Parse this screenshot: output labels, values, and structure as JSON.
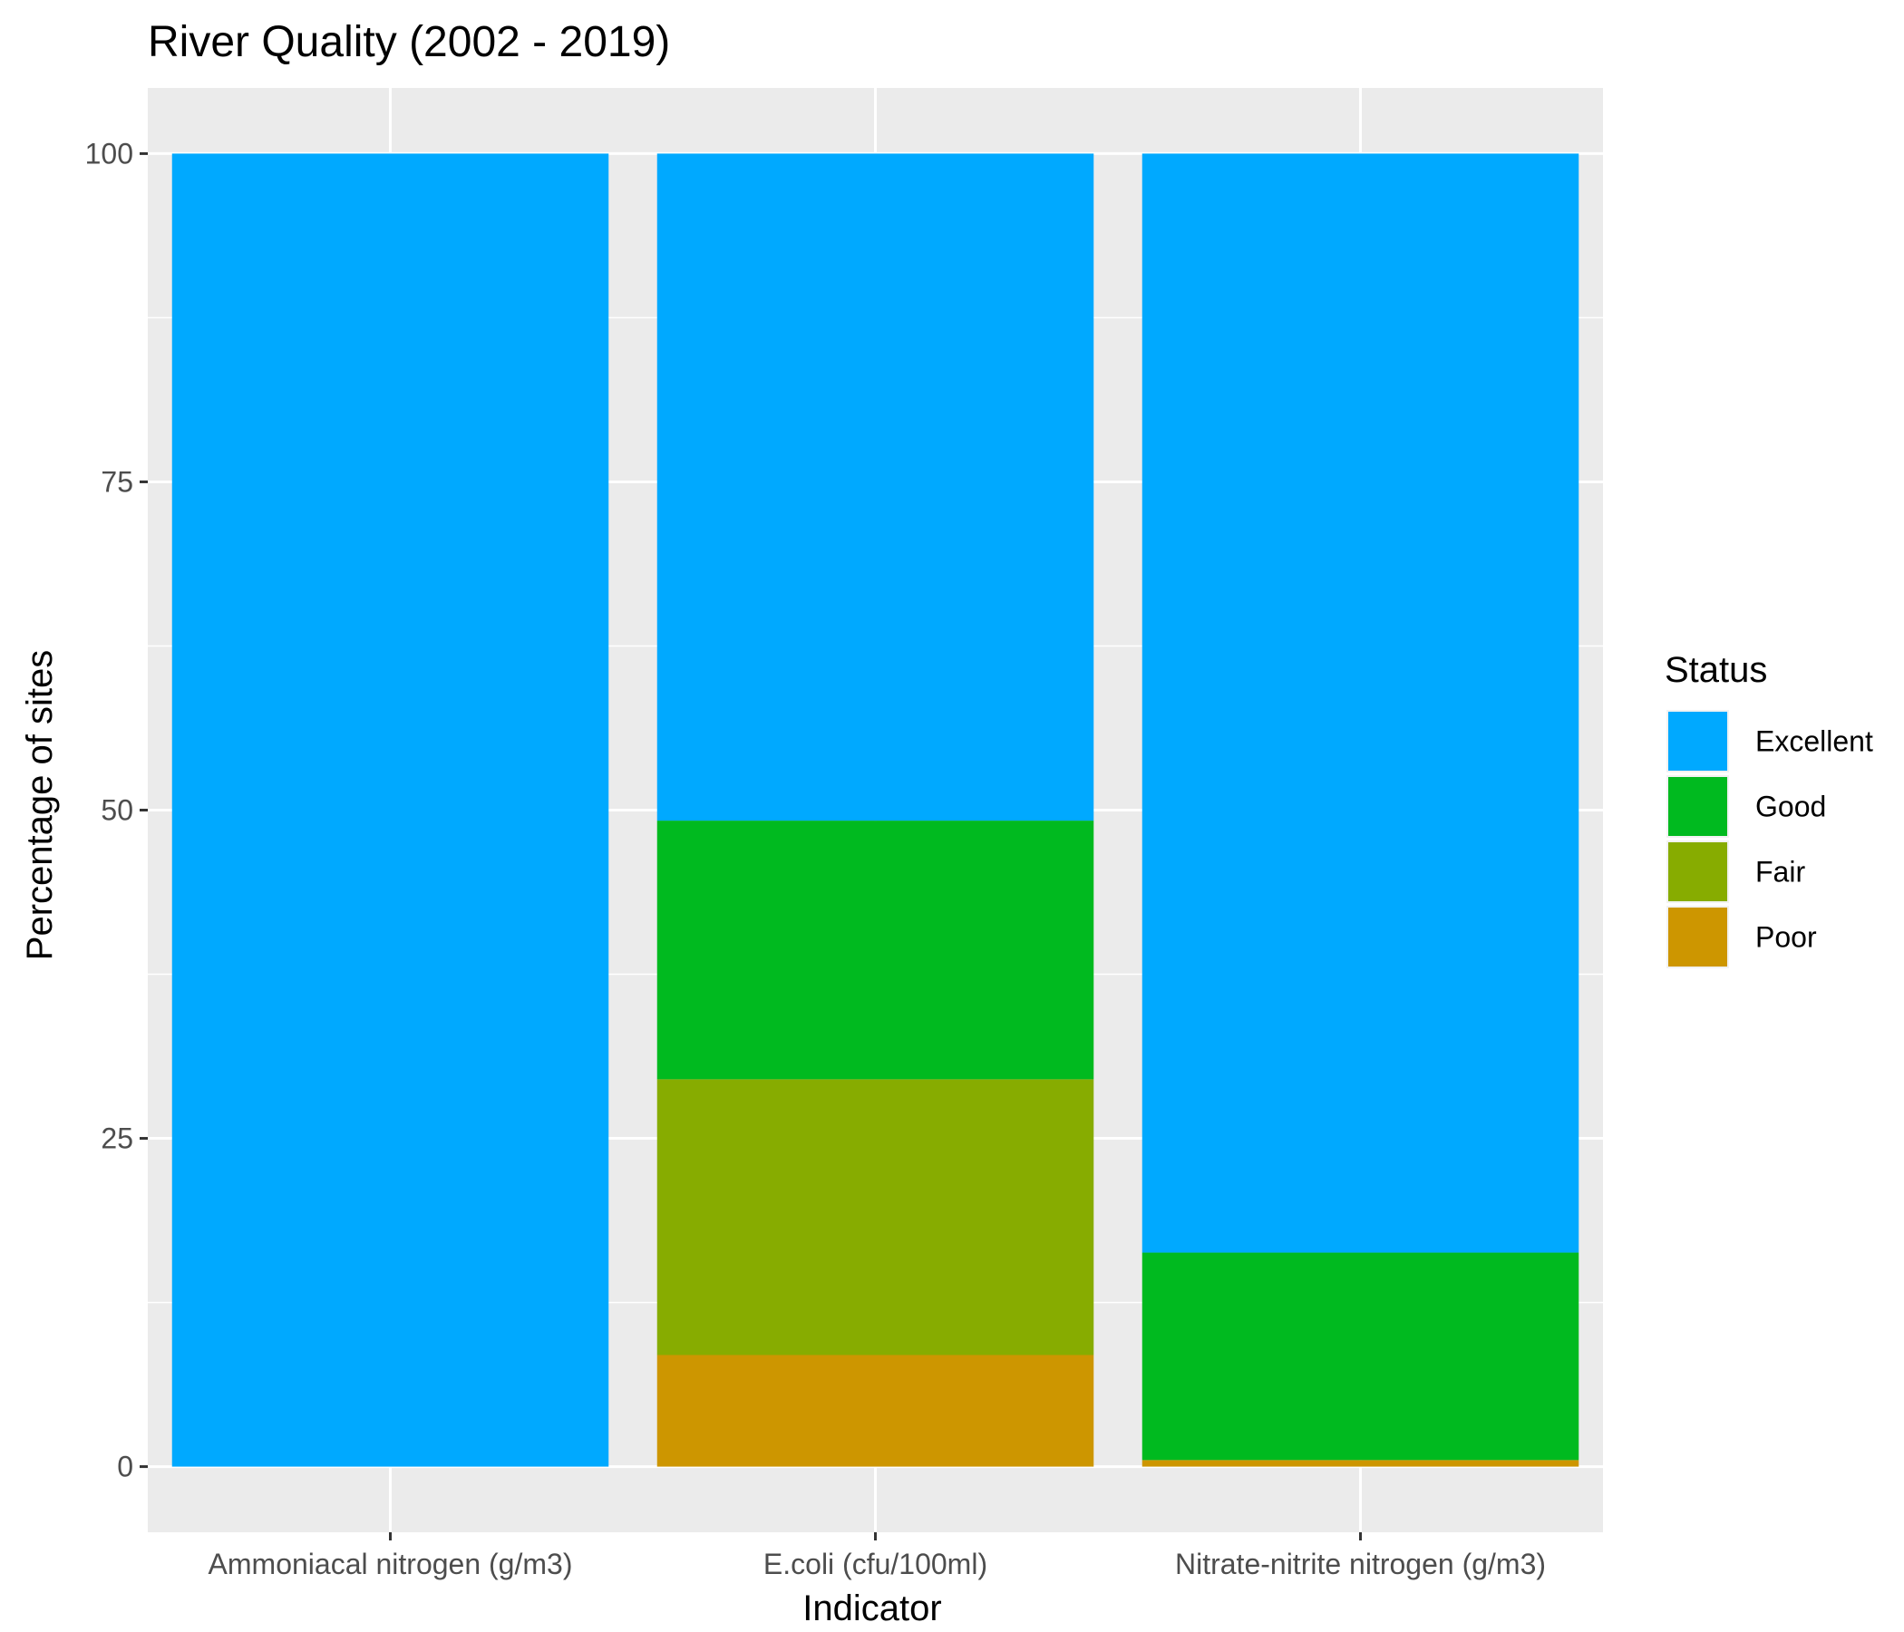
{
  "chart_data": {
    "type": "bar",
    "stacked": true,
    "title": "River Quality (2002 - 2019)",
    "xlabel": "Indicator",
    "ylabel": "Percentage of sites",
    "categories": [
      "Ammoniacal nitrogen (g/m3)",
      "E.coli (cfu/100ml)",
      "Nitrate-nitrite nitrogen (g/m3)"
    ],
    "ylim": [
      -5,
      105
    ],
    "yticks": [
      0,
      25,
      50,
      75,
      100
    ],
    "grid": true,
    "legend": {
      "title": "Status",
      "placement": "right"
    },
    "series": [
      {
        "name": "Poor",
        "color": "#CD9600",
        "values": [
          0,
          8.5,
          0.5
        ]
      },
      {
        "name": "Fair",
        "color": "#87AC00",
        "values": [
          0,
          21.0,
          0
        ]
      },
      {
        "name": "Good",
        "color": "#00BA1F",
        "values": [
          0,
          19.7,
          15.8
        ]
      },
      {
        "name": "Excellent",
        "color": "#00A9FF",
        "values": [
          100,
          50.8,
          83.7
        ]
      }
    ],
    "legend_order": [
      "Excellent",
      "Good",
      "Fair",
      "Poor"
    ],
    "panel_background": "#EBEBEB",
    "gridline_color": "#FFFFFF"
  }
}
